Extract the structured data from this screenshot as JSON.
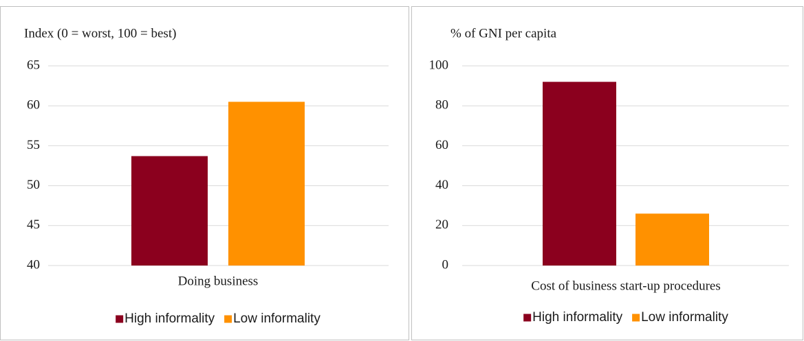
{
  "chart_data": [
    {
      "type": "bar",
      "title": "Index (0 = worst, 100 = best)",
      "categories": [
        "Doing business"
      ],
      "series": [
        {
          "name": "High informality",
          "color": "#8b001e",
          "values": [
            53.7
          ]
        },
        {
          "name": "Low informality",
          "color": "#ff9100",
          "values": [
            60.5
          ]
        }
      ],
      "ylim": [
        40,
        65
      ],
      "yticks": [
        40,
        45,
        50,
        55,
        60,
        65
      ],
      "grid": true
    },
    {
      "type": "bar",
      "title": "% of GNI per capita",
      "categories": [
        "Cost of business start-up procedures"
      ],
      "series": [
        {
          "name": "High informality",
          "color": "#8b001e",
          "values": [
            92
          ]
        },
        {
          "name": "Low informality",
          "color": "#ff9100",
          "values": [
            26
          ]
        }
      ],
      "ylim": [
        0,
        100
      ],
      "yticks": [
        0,
        20,
        40,
        60,
        80,
        100
      ],
      "grid": true
    }
  ]
}
